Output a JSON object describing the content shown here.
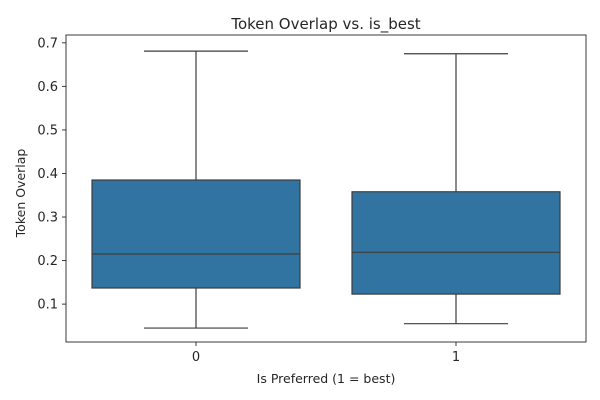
{
  "chart_data": {
    "type": "box",
    "title": "Token Overlap vs. is_best",
    "xlabel": "Is Preferred (1 = best)",
    "ylabel": "Token Overlap",
    "categories": [
      "0",
      "1"
    ],
    "boxes": [
      {
        "category": "0",
        "whisker_low": 0.045,
        "q1": 0.137,
        "median": 0.215,
        "q3": 0.385,
        "whisker_high": 0.681
      },
      {
        "category": "1",
        "whisker_low": 0.055,
        "q1": 0.123,
        "median": 0.219,
        "q3": 0.358,
        "whisker_high": 0.675
      }
    ],
    "ylim": [
      0.013,
      0.718
    ],
    "yticks": [
      0.1,
      0.2,
      0.3,
      0.4,
      0.5,
      0.6,
      0.7
    ],
    "ytick_labels": [
      "0.1",
      "0.2",
      "0.3",
      "0.4",
      "0.5",
      "0.6",
      "0.7"
    ],
    "grid": false,
    "colors": {
      "box_fill": "#3274a1",
      "line": "#3d3d3d",
      "axes": "#262626"
    }
  }
}
